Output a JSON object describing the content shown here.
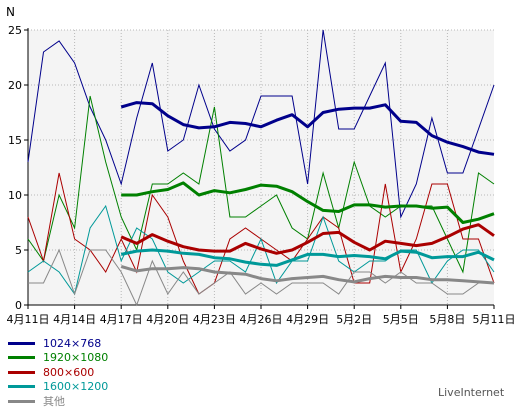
{
  "chart_data": {
    "type": "line",
    "ylabel": "N",
    "ylim": [
      0,
      25
    ],
    "yticks": [
      0,
      5,
      10,
      15,
      20,
      25
    ],
    "x": [
      "4月11日",
      "4月12日",
      "4月13日",
      "4月14日",
      "4月15日",
      "4月16日",
      "4月17日",
      "4月18日",
      "4月19日",
      "4月20日",
      "4月21日",
      "4月22日",
      "4月23日",
      "4月24日",
      "4月25日",
      "4月26日",
      "4月27日",
      "4月28日",
      "4月29日",
      "4月30日",
      "5月1日",
      "5月2日",
      "5月3日",
      "5月4日",
      "5月5日",
      "5月6日",
      "5月7日",
      "5月8日",
      "5月9日",
      "5月10日",
      "5月11日"
    ],
    "xticks": [
      "4月11日",
      "4月14日",
      "4月17日",
      "4月20日",
      "4月23日",
      "4月26日",
      "4月29日",
      "5月2日",
      "5月5日",
      "5月8日",
      "5月11日"
    ],
    "grid": true,
    "series": [
      {
        "name": "1024×768",
        "color": "#00008b",
        "values": [
          13,
          23,
          24,
          22,
          18,
          15,
          11,
          17,
          22,
          14,
          15,
          20,
          16,
          14,
          15,
          19,
          19,
          19,
          11,
          25,
          16,
          16,
          19,
          22,
          8,
          11,
          17,
          12,
          12,
          16,
          20
        ],
        "trend": [
          null,
          null,
          null,
          null,
          null,
          null,
          18,
          18.4,
          18.3,
          17.2,
          16.4,
          16.1,
          16.2,
          16.6,
          16.5,
          16.2,
          16.8,
          17.3,
          16.2,
          17.5,
          17.8,
          17.9,
          17.9,
          18.2,
          16.7,
          16.6,
          15.4,
          14.8,
          14.4,
          13.9,
          13.7
        ]
      },
      {
        "name": "1920×1080",
        "color": "#008000",
        "values": [
          6,
          4,
          10,
          7,
          19,
          13,
          8,
          5,
          11,
          11,
          12,
          11,
          18,
          8,
          8,
          9,
          10,
          7,
          6,
          12,
          7,
          13,
          9,
          8,
          9,
          9,
          9,
          6,
          3,
          12,
          11
        ],
        "trend": [
          null,
          null,
          null,
          null,
          null,
          null,
          10,
          10,
          10.3,
          10.5,
          11.1,
          10,
          10.4,
          10.2,
          10.5,
          10.9,
          10.8,
          10.3,
          9.4,
          8.6,
          8.5,
          9.1,
          9.1,
          8.9,
          9,
          9,
          8.8,
          8.9,
          7.5,
          7.8,
          8.3
        ]
      },
      {
        "name": "800×600",
        "color": "#aa0000",
        "values": [
          8,
          4,
          12,
          6,
          5,
          3,
          6,
          3,
          10,
          8,
          4,
          1,
          2,
          6,
          7,
          6,
          5,
          4,
          6,
          8,
          7,
          2,
          2,
          11,
          3,
          6,
          11,
          11,
          6,
          6,
          2
        ],
        "trend": [
          null,
          null,
          null,
          null,
          null,
          null,
          6.2,
          5.6,
          6.4,
          5.8,
          5.3,
          5,
          4.9,
          4.9,
          5.6,
          5.1,
          4.7,
          5,
          5.7,
          6.5,
          6.6,
          5.7,
          5,
          5.8,
          5.6,
          5.4,
          5.6,
          6.2,
          6.9,
          7.3,
          6.3
        ]
      },
      {
        "name": "1600×1200",
        "color": "#009999",
        "values": [
          3,
          4,
          3,
          1,
          7,
          9,
          4,
          7,
          6,
          3,
          2,
          3,
          4,
          4,
          3,
          6,
          2,
          4,
          4,
          8,
          4,
          3,
          4,
          4,
          5,
          5,
          2,
          4,
          5,
          5,
          3
        ],
        "trend": [
          null,
          null,
          null,
          null,
          null,
          null,
          4.6,
          4.9,
          5,
          4.9,
          4.7,
          4.6,
          4.3,
          4.2,
          3.9,
          3.7,
          3.6,
          4.1,
          4.6,
          4.6,
          4.4,
          4.5,
          4.4,
          4.2,
          4.9,
          4.8,
          4.3,
          4.4,
          4.4,
          4.8,
          4.1
        ]
      },
      {
        "name": "其他",
        "color": "#888888",
        "values": [
          2,
          2,
          5,
          1,
          5,
          5,
          3,
          0,
          4,
          1,
          3,
          1,
          2,
          3,
          1,
          2,
          1,
          2,
          2,
          2,
          1,
          3,
          3,
          2,
          3,
          2,
          2,
          1,
          1,
          2,
          2
        ],
        "trend": [
          null,
          null,
          null,
          null,
          null,
          null,
          3.5,
          3.1,
          3.3,
          3.3,
          3.4,
          3.3,
          3,
          2.9,
          2.8,
          2.4,
          2.2,
          2.4,
          2.5,
          2.6,
          2.3,
          2.1,
          2.4,
          2.6,
          2.5,
          2.5,
          2.3,
          2.3,
          2.2,
          2.1,
          2
        ]
      }
    ]
  },
  "credit": "LiveInternet"
}
